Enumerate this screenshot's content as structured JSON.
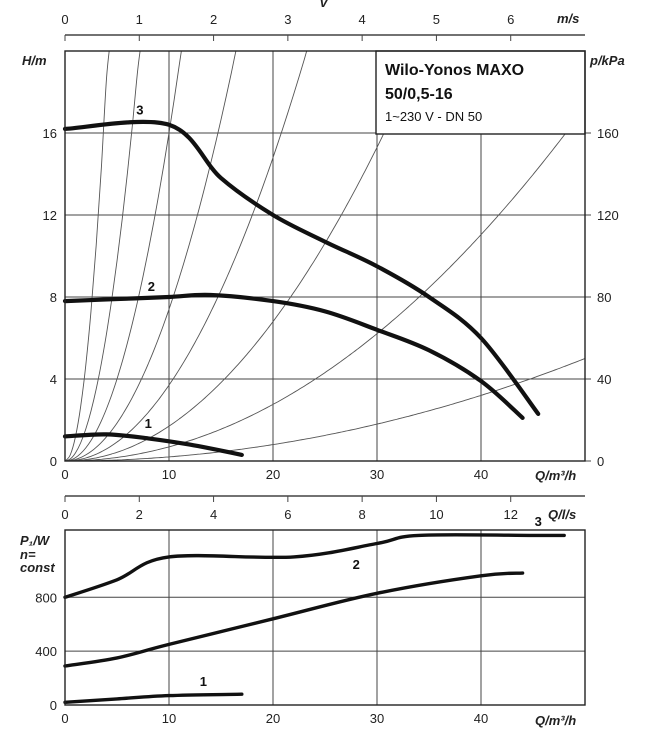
{
  "chart_data": [
    {
      "type": "line",
      "id": "head-curves",
      "legend": {
        "title_line1": "Wilo-Yonos MAXO",
        "title_line2": "50/0,5-16",
        "subtitle": "1~230 V - DN 50"
      },
      "xlabel": "Q/m³/h",
      "xlim": [
        0,
        50
      ],
      "xticks": [
        0,
        10,
        20,
        30,
        40
      ],
      "ylabel": "H/m",
      "ylim": [
        0,
        20
      ],
      "yticks": [
        0,
        4,
        8,
        12,
        16
      ],
      "y2label": "p/kPa",
      "y2ticks": [
        0,
        40,
        80,
        120,
        160
      ],
      "x2label": "m/s",
      "x2_symbol": "v",
      "x2lim": [
        0,
        7
      ],
      "x2ticks": [
        0,
        1,
        2,
        3,
        4,
        5,
        6
      ],
      "grid": true,
      "series": [
        {
          "name": "3",
          "x": [
            0,
            10,
            15,
            20,
            25,
            30,
            35,
            40,
            45.5
          ],
          "y": [
            16.2,
            16.4,
            13.8,
            12.0,
            10.7,
            9.5,
            8.0,
            6.0,
            2.3
          ]
        },
        {
          "name": "2",
          "x": [
            0,
            5,
            10,
            14,
            20,
            25,
            30,
            35,
            40,
            44
          ],
          "y": [
            7.8,
            7.9,
            8.0,
            8.1,
            7.8,
            7.3,
            6.4,
            5.4,
            3.9,
            2.1
          ]
        },
        {
          "name": "1",
          "x": [
            0,
            4,
            8,
            12,
            17
          ],
          "y": [
            1.2,
            1.3,
            1.1,
            0.8,
            0.3
          ]
        }
      ],
      "system_curves_k": [
        0.002,
        0.0069,
        0.017,
        0.037,
        0.074,
        0.16,
        0.39,
        1.17
      ]
    },
    {
      "type": "line",
      "id": "power-curves",
      "xlabel": "Q/m³/h",
      "xlim": [
        0,
        50
      ],
      "xticks": [
        0,
        10,
        20,
        30,
        40
      ],
      "ylabel_line1": "P₁/W",
      "ylabel_line2": "n=",
      "ylabel_line3": "const",
      "ylim": [
        0,
        1300
      ],
      "yticks": [
        0,
        400,
        800
      ],
      "x2label": "Q/l/s",
      "x2lim": [
        0,
        14
      ],
      "x2ticks": [
        0,
        2,
        4,
        6,
        8,
        10,
        12
      ],
      "grid": true,
      "series": [
        {
          "name": "3",
          "x": [
            0,
            5,
            10,
            22,
            30,
            34,
            45,
            48
          ],
          "y": [
            800,
            930,
            1100,
            1100,
            1200,
            1260,
            1260,
            1260
          ]
        },
        {
          "name": "2",
          "x": [
            0,
            5,
            10,
            20,
            30,
            40,
            44
          ],
          "y": [
            290,
            350,
            450,
            640,
            830,
            960,
            980
          ]
        },
        {
          "name": "1",
          "x": [
            0,
            5,
            10,
            17
          ],
          "y": [
            20,
            45,
            70,
            80
          ]
        }
      ]
    }
  ]
}
